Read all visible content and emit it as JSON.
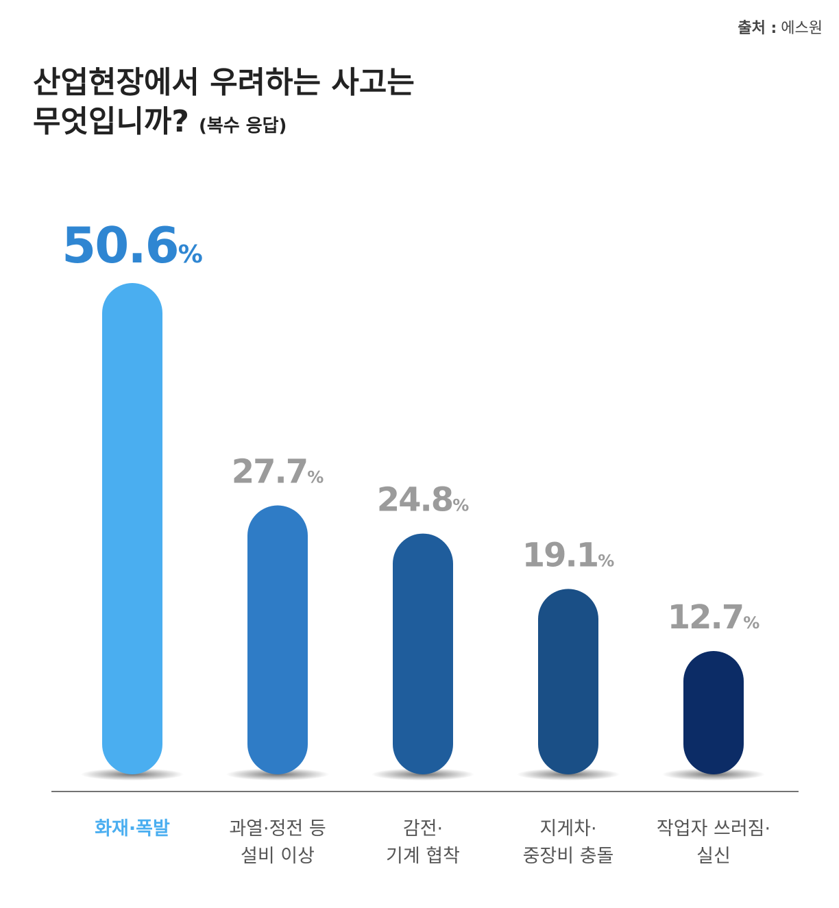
{
  "chart_data": {
    "type": "bar",
    "source": {
      "label": "출처 :",
      "name": "에스원"
    },
    "title": [
      "산업현장에서 우려하는 사고는",
      "무엇입니까?"
    ],
    "subtitle": "(복수 응답)",
    "categories": [
      "화재·폭발",
      "과열·정전 등\n설비 이상",
      "감전·\n기계 협착",
      "지게차·\n중장비 충돌",
      "작업자 쓰러짐·\n실신"
    ],
    "values": [
      50.6,
      27.7,
      24.8,
      19.1,
      12.7
    ],
    "value_labels": [
      "50.6%",
      "27.7%",
      "24.8%",
      "19.1%",
      "12.7%"
    ],
    "colors": [
      "#4aaef0",
      "#2f7cc6",
      "#1f5d9c",
      "#1a4f86",
      "#0c2c66"
    ],
    "value_label_colors": [
      "#2f86d2",
      "#9b9b9b",
      "#9b9b9b",
      "#9b9b9b",
      "#9b9b9b"
    ],
    "category_colors": [
      "#4aaef0",
      "#555555",
      "#555555",
      "#555555",
      "#555555"
    ]
  }
}
